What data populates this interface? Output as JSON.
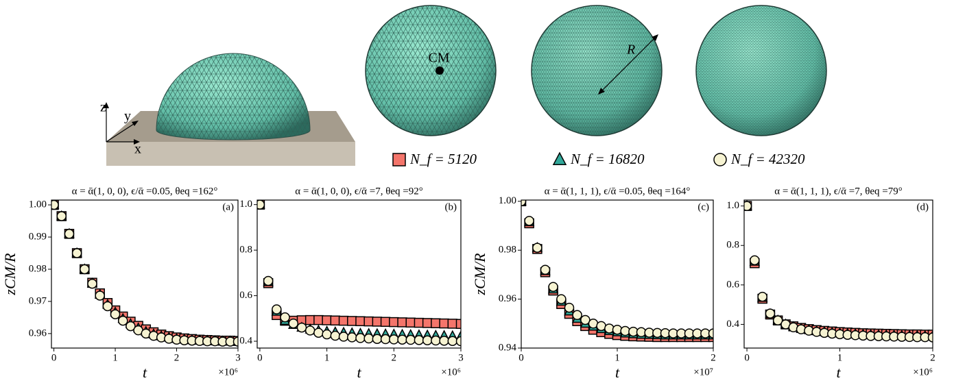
{
  "illustration": {
    "axes": [
      "z",
      "y",
      "x"
    ],
    "cm": "CM",
    "radius": "R"
  },
  "legend": [
    {
      "name": "N_f = 5120",
      "color": "#f4756b",
      "marker": "square"
    },
    {
      "name": "N_f = 16820",
      "color": "#31a89a",
      "marker": "triangle"
    },
    {
      "name": "N_f = 42320",
      "color": "#f6f3d2",
      "marker": "circle"
    }
  ],
  "chart_data": [
    {
      "type": "scatter",
      "title": "α = ᾱ(1, 0, 0),  ϵ/ᾱ =0.05, θeq =162°",
      "panel": "(a)",
      "xlabel": "t",
      "ylabel": "zCM/R",
      "x_multiplier": "×10⁶",
      "xlim": [
        -0.04,
        3
      ],
      "xticks": [
        0,
        1,
        2,
        3
      ],
      "ylim": [
        0.9555,
        1.0015
      ],
      "yticks": [
        0.96,
        0.97,
        0.98,
        0.99,
        {
          "value": 1,
          "label": "1.00"
        }
      ],
      "x": [
        0,
        0.125,
        0.25,
        0.375,
        0.5,
        0.625,
        0.75,
        0.875,
        1,
        1.125,
        1.25,
        1.375,
        1.5,
        1.625,
        1.75,
        1.875,
        2,
        2.125,
        2.25,
        2.375,
        2.5,
        2.625,
        2.75,
        2.875,
        3
      ],
      "series": [
        {
          "values": [
            1.0,
            0.9965,
            0.991,
            0.985,
            0.98,
            0.9758,
            0.9725,
            0.9695,
            0.9672,
            0.9653,
            0.9637,
            0.9624,
            0.9613,
            0.9604,
            0.9597,
            0.9592,
            0.9588,
            0.9585,
            0.9583,
            0.9581,
            0.958,
            0.9579,
            0.9578,
            0.9578,
            0.9577
          ]
        },
        {
          "values": [
            1.0,
            0.9965,
            0.991,
            0.985,
            0.98,
            0.9756,
            0.9721,
            0.969,
            0.9666,
            0.9646,
            0.963,
            0.9617,
            0.9606,
            0.9598,
            0.9592,
            0.9588,
            0.9584,
            0.9582,
            0.958,
            0.9579,
            0.9578,
            0.9577,
            0.9576,
            0.9576,
            0.9576
          ]
        },
        {
          "values": [
            1.0,
            0.9965,
            0.991,
            0.985,
            0.98,
            0.9755,
            0.9718,
            0.9685,
            0.966,
            0.964,
            0.9623,
            0.961,
            0.96,
            0.9593,
            0.9588,
            0.9584,
            0.9581,
            0.9579,
            0.9578,
            0.9577,
            0.9576,
            0.9576,
            0.9575,
            0.9575,
            0.9575
          ]
        }
      ]
    },
    {
      "type": "scatter",
      "title": "α = ᾱ(1, 0, 0),  ϵ/ᾱ =7, θeq =92°",
      "panel": "(b)",
      "xlabel": "t",
      "x_multiplier": "×10⁶",
      "xlim": [
        -0.04,
        3
      ],
      "xticks": [
        0,
        1,
        2,
        3
      ],
      "ylim": [
        0.37,
        1.02
      ],
      "yticks": [
        0.4,
        0.6,
        0.8,
        {
          "value": 1,
          "label": "1.0"
        }
      ],
      "x": [
        0,
        0.125,
        0.25,
        0.375,
        0.5,
        0.625,
        0.75,
        0.875,
        1,
        1.125,
        1.25,
        1.375,
        1.5,
        1.625,
        1.75,
        1.875,
        2,
        2.125,
        2.25,
        2.375,
        2.5,
        2.625,
        2.75,
        2.875,
        3
      ],
      "series": [
        {
          "values": [
            1.0,
            0.655,
            0.515,
            0.49,
            0.49,
            0.492,
            0.493,
            0.493,
            0.492,
            0.491,
            0.49,
            0.489,
            0.488,
            0.487,
            0.486,
            0.485,
            0.484,
            0.483,
            0.482,
            0.481,
            0.48,
            0.479,
            0.478,
            0.477,
            0.476
          ]
        },
        {
          "values": [
            1.0,
            0.66,
            0.53,
            0.49,
            0.472,
            0.46,
            0.452,
            0.447,
            0.443,
            0.44,
            0.438,
            0.436,
            0.434,
            0.433,
            0.432,
            0.431,
            0.43,
            0.429,
            0.428,
            0.427,
            0.426,
            0.425,
            0.424,
            0.423,
            0.422
          ]
        },
        {
          "values": [
            1.0,
            0.665,
            0.54,
            0.505,
            0.478,
            0.46,
            0.447,
            0.437,
            0.43,
            0.424,
            0.42,
            0.417,
            0.414,
            0.412,
            0.41,
            0.409,
            0.408,
            0.407,
            0.406,
            0.405,
            0.404,
            0.403,
            0.402,
            0.401,
            0.4
          ]
        }
      ]
    },
    {
      "type": "scatter",
      "title": "α = ᾱ(1, 1, 1),  ϵ/ᾱ =0.05, θeq =164°",
      "panel": "(c)",
      "xlabel": "t",
      "ylabel": "zCM/R",
      "x_multiplier": "×10⁷",
      "xlim": [
        0,
        2
      ],
      "xticks": [
        0,
        1,
        2
      ],
      "ylim": [
        0.94,
        1.0005
      ],
      "yticks": [
        0.94,
        0.96,
        0.98,
        {
          "value": 1,
          "label": "1.00"
        }
      ],
      "x": [
        0,
        0.083,
        0.167,
        0.25,
        0.333,
        0.417,
        0.5,
        0.583,
        0.667,
        0.75,
        0.833,
        0.917,
        1,
        1.083,
        1.167,
        1.25,
        1.333,
        1.417,
        1.5,
        1.583,
        1.667,
        1.75,
        1.833,
        1.917,
        2
      ],
      "series": [
        {
          "values": [
            1.0,
            0.991,
            0.9805,
            0.971,
            0.9635,
            0.958,
            0.954,
            0.951,
            0.949,
            0.9475,
            0.9465,
            0.9458,
            0.9453,
            0.945,
            0.9448,
            0.9447,
            0.9446,
            0.9445,
            0.9445,
            0.9445,
            0.9445,
            0.9445,
            0.9445,
            0.9445,
            0.9445
          ]
        },
        {
          "values": [
            1.0,
            0.9915,
            0.981,
            0.9715,
            0.964,
            0.959,
            0.955,
            0.952,
            0.95,
            0.9488,
            0.9478,
            0.947,
            0.9465,
            0.946,
            0.9457,
            0.9455,
            0.9454,
            0.9453,
            0.9452,
            0.9452,
            0.9452,
            0.9452,
            0.9452,
            0.9452,
            0.9452
          ]
        },
        {
          "values": [
            1.0,
            0.992,
            0.981,
            0.972,
            0.965,
            0.96,
            0.9565,
            0.9535,
            0.9515,
            0.95,
            0.949,
            0.948,
            0.9475,
            0.947,
            0.9467,
            0.9465,
            0.9463,
            0.9462,
            0.9461,
            0.946,
            0.946,
            0.946,
            0.946,
            0.946,
            0.946
          ]
        }
      ]
    },
    {
      "type": "scatter",
      "title": "α = ᾱ(1, 1, 1),  ϵ/ᾱ =7, θeq =79°",
      "panel": "(d)",
      "xlabel": "t",
      "x_multiplier": "×10⁶",
      "xlim": [
        -0.03,
        2
      ],
      "xticks": [
        0,
        1,
        2
      ],
      "ylim": [
        0.28,
        1.03
      ],
      "yticks": [
        0.4,
        0.6,
        0.8,
        {
          "value": 1,
          "label": "1.0"
        }
      ],
      "x": [
        0,
        0.083,
        0.167,
        0.25,
        0.333,
        0.417,
        0.5,
        0.583,
        0.667,
        0.75,
        0.833,
        0.917,
        1,
        1.083,
        1.167,
        1.25,
        1.333,
        1.417,
        1.5,
        1.583,
        1.667,
        1.75,
        1.833,
        1.917,
        2
      ],
      "series": [
        {
          "values": [
            1.0,
            0.71,
            0.53,
            0.45,
            0.42,
            0.4,
            0.39,
            0.382,
            0.376,
            0.371,
            0.367,
            0.364,
            0.361,
            0.359,
            0.357,
            0.355,
            0.354,
            0.353,
            0.352,
            0.351,
            0.35,
            0.349,
            0.349,
            0.348,
            0.348
          ]
        },
        {
          "values": [
            1.0,
            0.718,
            0.535,
            0.452,
            0.42,
            0.4,
            0.387,
            0.378,
            0.372,
            0.366,
            0.362,
            0.358,
            0.355,
            0.353,
            0.351,
            0.349,
            0.347,
            0.346,
            0.345,
            0.344,
            0.343,
            0.342,
            0.342,
            0.341,
            0.341
          ]
        },
        {
          "values": [
            1.0,
            0.725,
            0.54,
            0.455,
            0.42,
            0.4,
            0.385,
            0.375,
            0.368,
            0.362,
            0.357,
            0.353,
            0.35,
            0.347,
            0.345,
            0.343,
            0.341,
            0.34,
            0.339,
            0.338,
            0.337,
            0.336,
            0.335,
            0.335,
            0.334
          ]
        }
      ]
    }
  ]
}
